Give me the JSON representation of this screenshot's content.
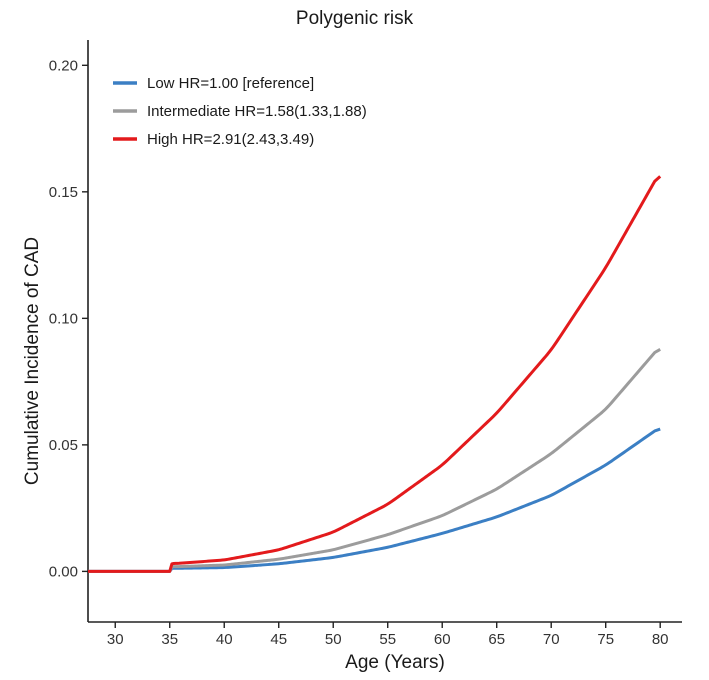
{
  "chart_data": {
    "type": "line",
    "title": "Polygenic risk",
    "xlabel": "Age (Years)",
    "ylabel": "Cumulative Incidence of CAD",
    "xlim": [
      27.5,
      82
    ],
    "ylim": [
      -0.02,
      0.21
    ],
    "xticks": [
      30,
      35,
      40,
      45,
      50,
      55,
      60,
      65,
      70,
      75,
      80
    ],
    "yticks": [
      0.0,
      0.05,
      0.1,
      0.15,
      0.2
    ],
    "ytick_labels": [
      "0.00",
      "0.05",
      "0.10",
      "0.15",
      "0.20"
    ],
    "grid": false,
    "legend_position": "top-left",
    "series": [
      {
        "name": "Low HR=1.00 [reference]",
        "color": "#3b7fc4",
        "x": [
          27.5,
          35,
          35.2,
          40,
          45,
          50,
          55,
          60,
          65,
          70,
          75,
          80
        ],
        "y": [
          0.0,
          0.0,
          0.0012,
          0.0015,
          0.003,
          0.0055,
          0.0095,
          0.015,
          0.0215,
          0.03,
          0.042,
          0.057
        ]
      },
      {
        "name": "Intermediate HR=1.58(1.33,1.88)",
        "color": "#9c9c9c",
        "x": [
          27.5,
          35,
          35.2,
          40,
          45,
          50,
          55,
          60,
          65,
          70,
          75,
          80
        ],
        "y": [
          0.0,
          0.0,
          0.0018,
          0.0025,
          0.0048,
          0.0085,
          0.0145,
          0.022,
          0.0325,
          0.0465,
          0.064,
          0.089
        ]
      },
      {
        "name": "High HR=2.91(2.43,3.49)",
        "color": "#e31a1c",
        "x": [
          27.5,
          35,
          35.2,
          40,
          45,
          50,
          55,
          60,
          65,
          70,
          75,
          80
        ],
        "y": [
          0.0,
          0.0,
          0.003,
          0.0045,
          0.0085,
          0.0155,
          0.0265,
          0.042,
          0.0625,
          0.0875,
          0.12,
          0.158
        ]
      }
    ]
  }
}
